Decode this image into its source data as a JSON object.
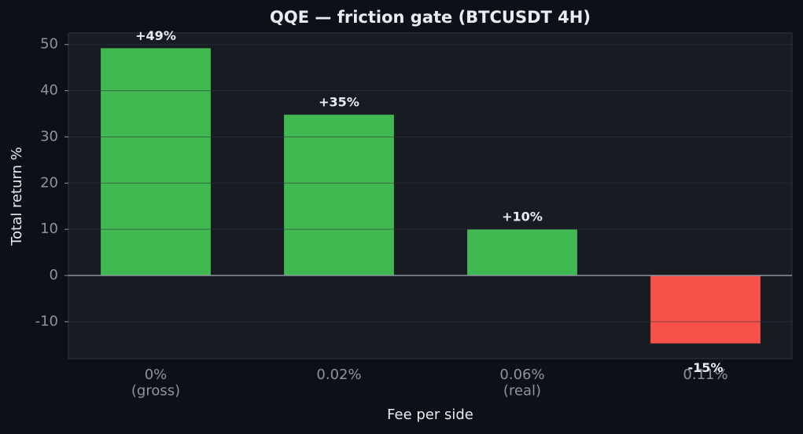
{
  "chart_data": {
    "type": "bar",
    "title": "QQE — friction gate (BTCUSDT 4H)",
    "x_label": "Fee per side",
    "y_label": "Total return %",
    "categories": [
      "0%\n(gross)",
      "0.02%",
      "0.06%\n(real)",
      "0.11%"
    ],
    "values": [
      49.2,
      34.8,
      10.0,
      -14.7
    ],
    "value_labels": [
      "+49%",
      "+35%",
      "+10%",
      "-15%"
    ],
    "colors": [
      "#3fb950",
      "#3fb950",
      "#3fb950",
      "#f85149"
    ],
    "ylim": [
      -18,
      52.5
    ],
    "yticks": [
      -10,
      0,
      10,
      20,
      30,
      40,
      50
    ],
    "grid": true
  }
}
